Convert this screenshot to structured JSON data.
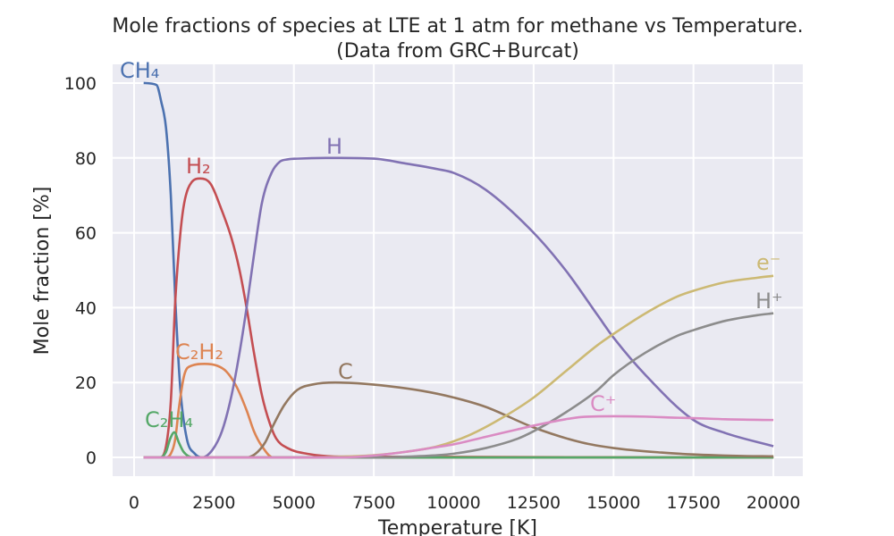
{
  "chart_data": {
    "type": "line",
    "title": "Mole fractions of species at LTE at 1 atm for methane vs Temperature.",
    "subtitle": "(Data from GRC+Burcat)",
    "xlabel": "Temperature [K]",
    "ylabel": "Mole fraction [%]",
    "xlim": [
      -670,
      20920
    ],
    "ylim": [
      -5,
      105
    ],
    "xticks": [
      0,
      2500,
      5000,
      7500,
      10000,
      12500,
      15000,
      17500,
      20000
    ],
    "xtick_labels": [
      "0",
      "2500",
      "5000",
      "7500",
      "10000",
      "12500",
      "15000",
      "17500",
      "20000"
    ],
    "yticks": [
      0,
      20,
      40,
      60,
      80,
      100
    ],
    "ytick_labels": [
      "0",
      "20",
      "40",
      "60",
      "80",
      "100"
    ],
    "grid": true,
    "legend": "none (inline labels)",
    "background": "#eaeaf2",
    "series": [
      {
        "name": "CH₄",
        "color": "#4c72b0",
        "x": [
          300,
          700,
          850,
          1000,
          1150,
          1290,
          1450,
          1650,
          1900,
          2130,
          20000
        ],
        "y": [
          100,
          99.5,
          95,
          88,
          70,
          42,
          18,
          5,
          1,
          0,
          0
        ]
      },
      {
        "name": "H₂",
        "color": "#c44e52",
        "x": [
          300,
          800,
          1000,
          1150,
          1290,
          1450,
          1570,
          1800,
          2070,
          2400,
          2700,
          3050,
          3300,
          3520,
          3750,
          4000,
          4250,
          4450,
          4800,
          5400,
          6500,
          20000
        ],
        "y": [
          0,
          0,
          3,
          15,
          42,
          60,
          68,
          73.5,
          74.5,
          73,
          67,
          58.5,
          50,
          40,
          28,
          16.6,
          9,
          5,
          2.5,
          1,
          0.2,
          0
        ]
      },
      {
        "name": "C₂H₂",
        "color": "#dd8452",
        "x": [
          300,
          1000,
          1150,
          1290,
          1400,
          1570,
          1800,
          2200,
          2600,
          2880,
          3200,
          3520,
          3750,
          4000,
          4350,
          20000
        ],
        "y": [
          0,
          0,
          1,
          5,
          13,
          22,
          24.5,
          25,
          24.5,
          23,
          19,
          12.6,
          7,
          3,
          0,
          0
        ]
      },
      {
        "name": "C₂H₄",
        "color": "#55a868",
        "x": [
          300,
          810,
          1000,
          1130,
          1260,
          1400,
          1550,
          1850,
          20000
        ],
        "y": [
          0,
          0,
          1.5,
          5,
          6.7,
          4,
          1.5,
          0,
          0
        ]
      },
      {
        "name": "H",
        "color": "#8172b3",
        "x": [
          300,
          2130,
          2450,
          2750,
          3050,
          3300,
          3520,
          3750,
          4000,
          4300,
          4560,
          4800,
          5100,
          6000,
          7500,
          8500,
          9500,
          10000,
          11000,
          12500,
          13500,
          14500,
          15000,
          16000,
          17500,
          18500,
          20000
        ],
        "y": [
          0,
          0,
          2,
          7,
          16.6,
          28,
          40,
          54,
          68,
          76,
          79,
          79.6,
          79.8,
          80,
          79.8,
          78.5,
          77,
          76,
          71.5,
          60,
          50,
          38,
          32,
          22,
          10,
          6.5,
          3
        ]
      },
      {
        "name": "C",
        "color": "#937860",
        "x": [
          300,
          3520,
          3800,
          4100,
          4350,
          4700,
          5100,
          5600,
          6300,
          7000,
          8000,
          9000,
          10000,
          11000,
          12500,
          14000,
          15000,
          16500,
          17500,
          19000,
          20000
        ],
        "y": [
          0,
          0,
          1,
          4,
          8.5,
          14,
          18,
          19.5,
          20,
          19.8,
          19,
          17.8,
          16,
          13.5,
          8,
          4,
          2.5,
          1.3,
          0.8,
          0.4,
          0.3
        ]
      },
      {
        "name": "e⁻",
        "color": "#ccb974",
        "x": [
          300,
          5500,
          6500,
          7500,
          8500,
          9500,
          10500,
          11500,
          12500,
          13500,
          14500,
          15000,
          16000,
          17000,
          17500,
          18500,
          19500,
          20000
        ],
        "y": [
          0,
          0,
          0.2,
          0.6,
          1.5,
          3,
          6,
          10.5,
          16,
          23,
          30,
          33,
          38.5,
          43,
          44.5,
          46.8,
          48,
          48.5
        ]
      },
      {
        "name": "H⁺",
        "color": "#8c8c8c",
        "x": [
          300,
          7500,
          8500,
          9500,
          10000,
          11000,
          12000,
          12500,
          13500,
          14500,
          15000,
          16000,
          17000,
          17500,
          18500,
          19500,
          20000
        ],
        "y": [
          0,
          0,
          0.2,
          0.6,
          1,
          2.5,
          5,
          7,
          12,
          18,
          22,
          28,
          32.5,
          34,
          36.5,
          38,
          38.5
        ]
      },
      {
        "name": "C⁺",
        "color": "#da8bc3",
        "x": [
          300,
          6500,
          7500,
          8500,
          9500,
          10000,
          11000,
          12000,
          12500,
          13500,
          14000,
          15000,
          16000,
          17000,
          17500,
          18500,
          20000
        ],
        "y": [
          0,
          0,
          0.5,
          1.5,
          2.8,
          3.5,
          5.5,
          7.5,
          8.5,
          10.2,
          10.8,
          11,
          10.9,
          10.6,
          10.5,
          10.2,
          10
        ]
      }
    ],
    "annotations": [
      "CH₄",
      "H₂",
      "C₂H₂",
      "C₂H₄",
      "H",
      "C",
      "e⁻",
      "H⁺",
      "C⁺"
    ]
  }
}
